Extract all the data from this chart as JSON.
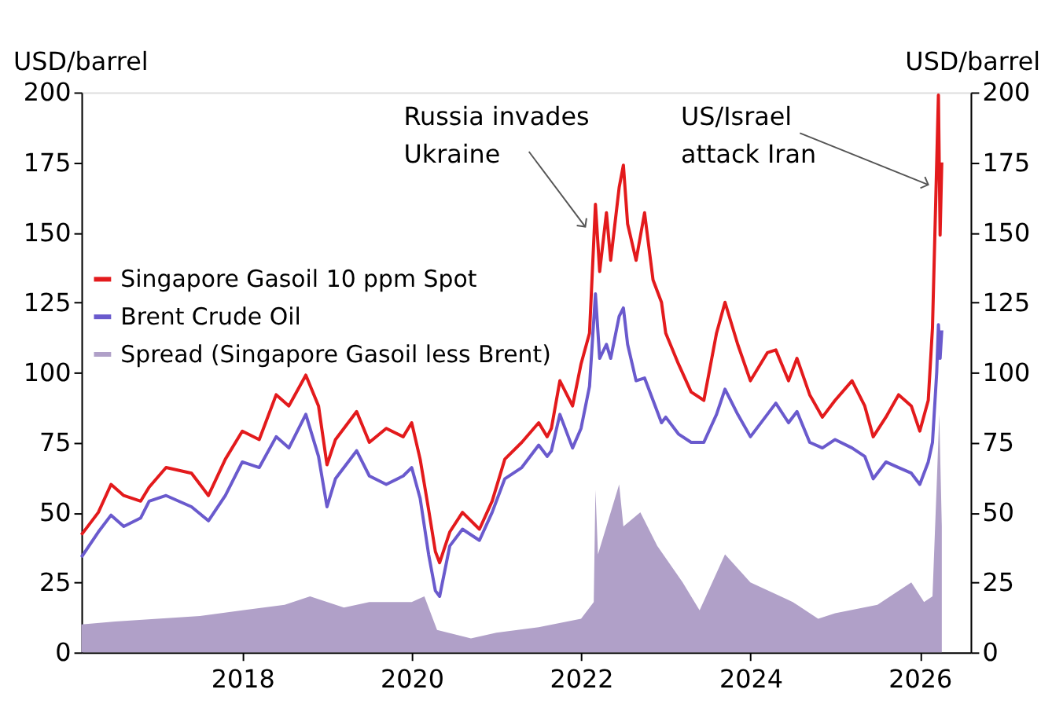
{
  "chart_data": {
    "type": "line",
    "ylabel": "USD/barrel",
    "y2label": "USD/barrel",
    "xlim": [
      2016.1,
      2026.6
    ],
    "xticks": [
      2018,
      2020,
      2022,
      2024,
      2026
    ],
    "ylim": [
      0,
      200
    ],
    "yticks": [
      0,
      25,
      50,
      75,
      100,
      125,
      150,
      175,
      200
    ],
    "y2lim": [
      0,
      200
    ],
    "y2ticks": [
      0,
      25,
      50,
      75,
      100,
      125,
      150,
      175,
      200
    ],
    "grid": false,
    "legend": "left",
    "annotations": [
      {
        "text": "Russia invades\nUkraine",
        "x": 2022.05,
        "y": 152
      },
      {
        "text": "US/Israel\nattack Iran",
        "x": 2026.1,
        "y": 167
      }
    ],
    "series": [
      {
        "name": "Singapore Gasoil 10 ppm Spot",
        "color": "#e31a1c",
        "x": [
          2016.1,
          2016.3,
          2016.45,
          2016.6,
          2016.8,
          2016.9,
          2017.1,
          2017.4,
          2017.6,
          2017.8,
          2018.0,
          2018.2,
          2018.4,
          2018.55,
          2018.75,
          2018.9,
          2019.0,
          2019.1,
          2019.35,
          2019.5,
          2019.7,
          2019.9,
          2020.0,
          2020.1,
          2020.2,
          2020.28,
          2020.33,
          2020.45,
          2020.6,
          2020.8,
          2020.95,
          2021.1,
          2021.3,
          2021.5,
          2021.6,
          2021.65,
          2021.75,
          2021.9,
          2022.0,
          2022.1,
          2022.17,
          2022.22,
          2022.3,
          2022.35,
          2022.45,
          2022.5,
          2022.55,
          2022.65,
          2022.75,
          2022.85,
          2022.95,
          2023.0,
          2023.15,
          2023.3,
          2023.45,
          2023.6,
          2023.7,
          2023.85,
          2024.0,
          2024.2,
          2024.3,
          2024.45,
          2024.55,
          2024.7,
          2024.85,
          2025.0,
          2025.2,
          2025.35,
          2025.45,
          2025.6,
          2025.75,
          2025.9,
          2026.0,
          2026.1,
          2026.15,
          2026.2,
          2026.22,
          2026.24,
          2026.26
        ],
        "values": [
          42,
          50,
          60,
          56,
          54,
          59,
          66,
          64,
          56,
          69,
          79,
          76,
          92,
          88,
          99,
          88,
          67,
          76,
          86,
          75,
          80,
          77,
          82,
          69,
          51,
          36,
          32,
          43,
          50,
          44,
          54,
          69,
          75,
          82,
          77,
          80,
          97,
          88,
          103,
          114,
          160,
          136,
          157,
          140,
          166,
          174,
          153,
          140,
          157,
          133,
          125,
          114,
          103,
          93,
          90,
          114,
          125,
          110,
          97,
          107,
          108,
          97,
          105,
          92,
          84,
          90,
          97,
          88,
          77,
          84,
          92,
          88,
          79,
          90,
          116,
          175,
          199,
          149,
          175
        ]
      },
      {
        "name": "Brent Crude Oil",
        "color": "#6a5acd",
        "x": [
          2016.1,
          2016.3,
          2016.45,
          2016.6,
          2016.8,
          2016.9,
          2017.1,
          2017.4,
          2017.6,
          2017.8,
          2018.0,
          2018.2,
          2018.4,
          2018.55,
          2018.75,
          2018.9,
          2019.0,
          2019.1,
          2019.35,
          2019.5,
          2019.7,
          2019.9,
          2020.0,
          2020.1,
          2020.2,
          2020.28,
          2020.33,
          2020.45,
          2020.6,
          2020.8,
          2020.95,
          2021.1,
          2021.3,
          2021.5,
          2021.6,
          2021.65,
          2021.75,
          2021.9,
          2022.0,
          2022.1,
          2022.17,
          2022.22,
          2022.3,
          2022.35,
          2022.45,
          2022.5,
          2022.55,
          2022.65,
          2022.75,
          2022.85,
          2022.95,
          2023.0,
          2023.15,
          2023.3,
          2023.45,
          2023.6,
          2023.7,
          2023.85,
          2024.0,
          2024.2,
          2024.3,
          2024.45,
          2024.55,
          2024.7,
          2024.85,
          2025.0,
          2025.2,
          2025.35,
          2025.45,
          2025.6,
          2025.75,
          2025.9,
          2026.0,
          2026.1,
          2026.15,
          2026.2,
          2026.22,
          2026.24,
          2026.26
        ],
        "values": [
          34,
          43,
          49,
          45,
          48,
          54,
          56,
          52,
          47,
          56,
          68,
          66,
          77,
          73,
          85,
          70,
          52,
          62,
          72,
          63,
          60,
          63,
          66,
          55,
          35,
          22,
          20,
          38,
          44,
          40,
          50,
          62,
          66,
          74,
          70,
          72,
          85,
          73,
          80,
          95,
          128,
          105,
          110,
          105,
          120,
          123,
          110,
          97,
          98,
          90,
          82,
          84,
          78,
          75,
          75,
          85,
          94,
          85,
          77,
          85,
          89,
          82,
          86,
          75,
          73,
          76,
          73,
          70,
          62,
          68,
          66,
          64,
          60,
          68,
          75,
          100,
          117,
          105,
          115
        ]
      },
      {
        "name": "Spread (Singapore Gasoil less Brent)",
        "color": "#b0a0c8",
        "type": "area",
        "x": [
          2016.1,
          2016.5,
          2017.0,
          2017.5,
          2018.0,
          2018.5,
          2018.8,
          2019.2,
          2019.5,
          2020.0,
          2020.15,
          2020.3,
          2020.7,
          2021.0,
          2021.5,
          2022.0,
          2022.15,
          2022.17,
          2022.2,
          2022.45,
          2022.5,
          2022.7,
          2022.9,
          2023.2,
          2023.4,
          2023.7,
          2024.0,
          2024.5,
          2024.8,
          2025.0,
          2025.5,
          2025.9,
          2026.05,
          2026.15,
          2026.2,
          2026.23,
          2026.26
        ],
        "values": [
          10,
          11,
          12,
          13,
          15,
          17,
          20,
          16,
          18,
          18,
          20,
          8,
          5,
          7,
          9,
          12,
          18,
          58,
          35,
          60,
          45,
          50,
          38,
          25,
          15,
          35,
          25,
          18,
          12,
          14,
          17,
          25,
          18,
          20,
          60,
          85,
          45
        ]
      }
    ]
  }
}
